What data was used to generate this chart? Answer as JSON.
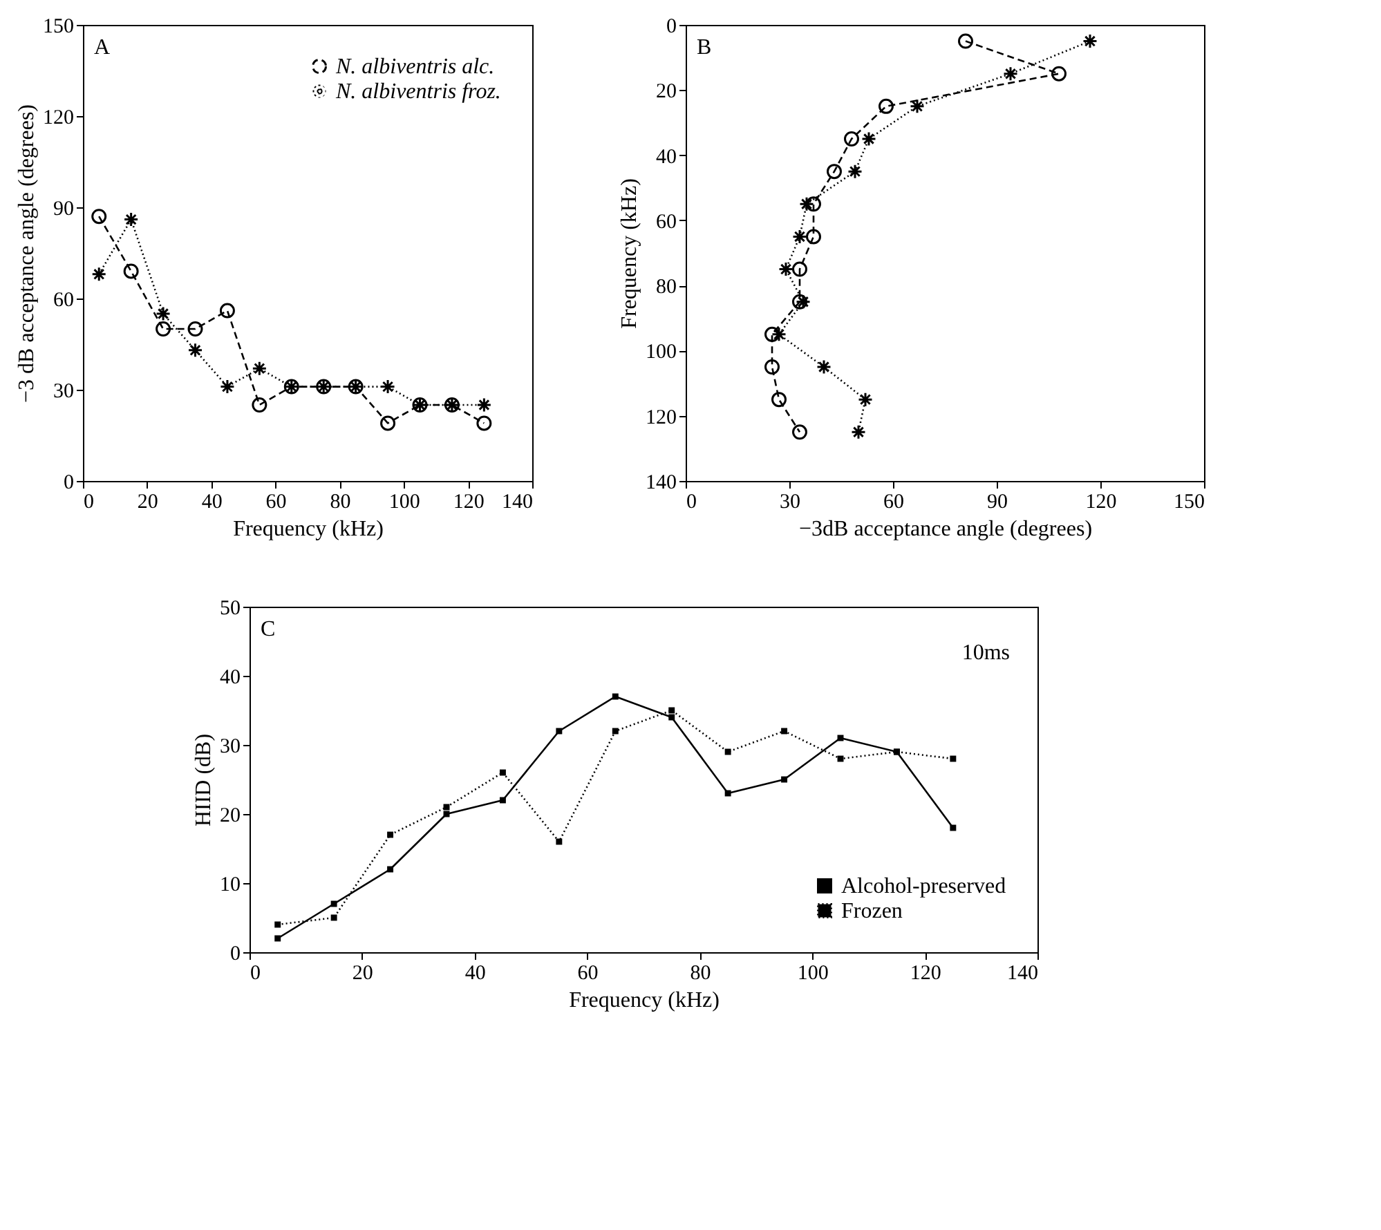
{
  "chart_data": [
    {
      "type": "line",
      "annotations": [
        "A"
      ],
      "xlabel": "Frequency (kHz)",
      "ylabel": "−3 dB acceptance angle (degrees)",
      "xlim": [
        0,
        140
      ],
      "xticks": [
        0,
        20,
        40,
        60,
        80,
        100,
        120,
        140
      ],
      "ylim": [
        0,
        150
      ],
      "yticks": [
        0,
        30,
        60,
        90,
        120,
        150
      ],
      "grid": false,
      "legend": "top right",
      "x": [
        5,
        15,
        25,
        35,
        45,
        55,
        65,
        75,
        85,
        95,
        105,
        115,
        125
      ],
      "series": [
        {
          "name": "N. albiventris alc.",
          "color": "#000000",
          "marker": "circle",
          "line_style": "dashed",
          "values": [
            87,
            69,
            50,
            50,
            56,
            25,
            31,
            31,
            31,
            19,
            25,
            25,
            19
          ]
        },
        {
          "name": "N. albiventris froz.",
          "color": "#000000",
          "marker": "cross",
          "line_style": "dotted",
          "values": [
            68,
            86,
            55,
            43,
            31,
            37,
            31,
            31,
            31,
            31,
            25,
            25,
            25
          ]
        }
      ]
    },
    {
      "type": "line",
      "annotations": [
        "B"
      ],
      "xlabel": "−3dB acceptance angle (degrees)",
      "ylabel": "Frequency (kHz)",
      "xlim": [
        0,
        150
      ],
      "xticks": [
        0,
        30,
        60,
        90,
        120,
        150
      ],
      "ylim": [
        140,
        0
      ],
      "yticks": [
        0,
        20,
        40,
        60,
        80,
        100,
        120,
        140
      ],
      "grid": false,
      "legend": false,
      "series": [
        {
          "color": "#000000",
          "marker": "circle",
          "line_style": "dashed",
          "x": [
            81,
            108,
            58,
            48,
            43,
            37,
            37,
            33,
            33,
            25,
            25,
            27,
            33
          ],
          "values": [
            5,
            15,
            25,
            35,
            45,
            55,
            65,
            75,
            85,
            95,
            105,
            115,
            125
          ]
        },
        {
          "color": "#000000",
          "marker": "cross",
          "line_style": "dotted",
          "x": [
            117,
            94,
            67,
            53,
            49,
            35,
            33,
            29,
            34,
            27,
            40,
            52,
            50
          ],
          "values": [
            5,
            15,
            25,
            35,
            45,
            55,
            65,
            75,
            85,
            95,
            105,
            115,
            125
          ]
        }
      ]
    },
    {
      "type": "line",
      "annotations": [
        "C",
        "10ms"
      ],
      "xlabel": "Frequency (kHz)",
      "ylabel": "HIID (dB)",
      "xlim": [
        0,
        140
      ],
      "xticks": [
        0,
        20,
        40,
        60,
        80,
        100,
        120,
        140
      ],
      "ylim": [
        0,
        50
      ],
      "yticks": [
        0,
        10,
        20,
        30,
        40,
        50
      ],
      "grid": false,
      "legend": "bottom right",
      "x": [
        5,
        15,
        25,
        35,
        45,
        55,
        65,
        75,
        85,
        95,
        105,
        115,
        125
      ],
      "series": [
        {
          "name": "Alcohol-preserved",
          "color": "#000000",
          "marker": "square",
          "line_style": "solid",
          "values": [
            2,
            7,
            12,
            20,
            22,
            32,
            37,
            34,
            23,
            25,
            31,
            29,
            18
          ]
        },
        {
          "name": "Frozen",
          "color": "#000000",
          "marker": "square",
          "line_style": "dotted",
          "values": [
            4,
            5,
            17,
            21,
            26,
            16,
            32,
            35,
            29,
            32,
            28,
            29,
            28
          ]
        }
      ]
    }
  ]
}
